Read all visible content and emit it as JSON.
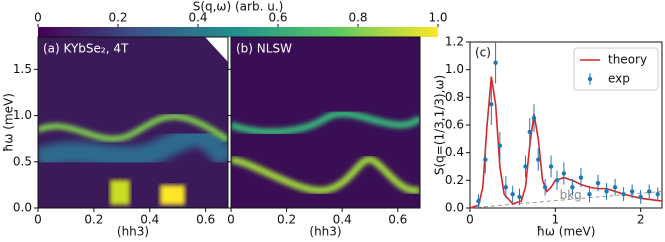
{
  "chart_data": [
    {
      "type": "colorbar",
      "label": "S(q,ω) (arb. u.)",
      "xlim": [
        0,
        1
      ],
      "xticks": [
        0,
        0.2,
        0.4,
        0.6,
        0.8,
        {
          "value": 1,
          "label": "1.0"
        }
      ]
    },
    {
      "type": "heatmap",
      "title": "(a) KYbSe₂, 4T",
      "xlabel": "(hh3)",
      "ylabel": "ħω (meV)",
      "xlim": [
        0,
        0.68
      ],
      "ylim": [
        0,
        1.85
      ],
      "xticks": [
        0,
        0.2,
        0.4,
        0.6
      ],
      "yticks": [
        {
          "value": 0,
          "label": "0.0"
        },
        0.5,
        {
          "value": 1,
          "label": "1.0"
        },
        1.5
      ]
    },
    {
      "type": "heatmap",
      "title": "(b) NLSW",
      "xlabel": "(hh3)",
      "xlim": [
        0,
        0.68
      ],
      "ylim": [
        0,
        1.85
      ],
      "xticks": [
        0,
        0.2,
        0.4,
        0.6
      ],
      "yticks": [
        0,
        0.5,
        1,
        1.5
      ]
    },
    {
      "type": "line",
      "title": "(c)",
      "xlabel": "ħω (meV)",
      "ylabel": "S(q=(1/3,1/3),ω)",
      "xlim": [
        0,
        2.25
      ],
      "ylim": [
        0,
        1.2
      ],
      "xticks": [
        0,
        1,
        2
      ],
      "yticks": [
        {
          "value": 0,
          "label": "0.0"
        },
        0.2,
        0.4,
        0.6,
        0.8,
        {
          "value": 1,
          "label": "1.0"
        },
        1.2
      ],
      "legend": "upper right",
      "annotations": [
        "bkg"
      ],
      "bkg": {
        "x": [
          0,
          2.25
        ],
        "values": [
          0,
          0.12
        ],
        "color": "#999999"
      },
      "series": [
        {
          "name": "theory",
          "color": "#d62728",
          "x": [
            0,
            0.1,
            0.15,
            0.2,
            0.25,
            0.3,
            0.35,
            0.4,
            0.5,
            0.6,
            0.65,
            0.7,
            0.75,
            0.8,
            0.85,
            0.9,
            0.95,
            1.0,
            1.1,
            1.2,
            1.3,
            1.4,
            1.5,
            1.6,
            1.7,
            1.8,
            2.0,
            2.25
          ],
          "values": [
            0,
            0.02,
            0.15,
            0.6,
            0.95,
            0.75,
            0.3,
            0.1,
            0.03,
            0.05,
            0.15,
            0.45,
            0.68,
            0.5,
            0.2,
            0.12,
            0.15,
            0.2,
            0.22,
            0.2,
            0.17,
            0.15,
            0.14,
            0.14,
            0.12,
            0.1,
            0.07,
            0.05
          ]
        },
        {
          "name": "exp",
          "color": "#1f77b4",
          "x": [
            0.1,
            0.18,
            0.25,
            0.3,
            0.35,
            0.42,
            0.5,
            0.58,
            0.65,
            0.7,
            0.75,
            0.8,
            0.88,
            0.95,
            1.02,
            1.1,
            1.2,
            1.3,
            1.4,
            1.5,
            1.6,
            1.7,
            1.8,
            1.9,
            2.0,
            2.1,
            2.2
          ],
          "values": [
            0.05,
            0.35,
            0.75,
            1.05,
            0.45,
            0.15,
            0.1,
            0.08,
            0.3,
            0.55,
            0.65,
            0.35,
            0.15,
            0.3,
            0.2,
            0.25,
            0.15,
            0.22,
            0.1,
            0.18,
            0.12,
            0.15,
            0.1,
            0.12,
            0.08,
            0.12,
            0.1
          ],
          "errors": [
            0.05,
            0.1,
            0.15,
            0.15,
            0.1,
            0.08,
            0.06,
            0.06,
            0.08,
            0.1,
            0.1,
            0.08,
            0.06,
            0.08,
            0.07,
            0.08,
            0.06,
            0.07,
            0.06,
            0.06,
            0.06,
            0.06,
            0.05,
            0.05,
            0.05,
            0.05,
            0.05
          ]
        }
      ]
    }
  ]
}
